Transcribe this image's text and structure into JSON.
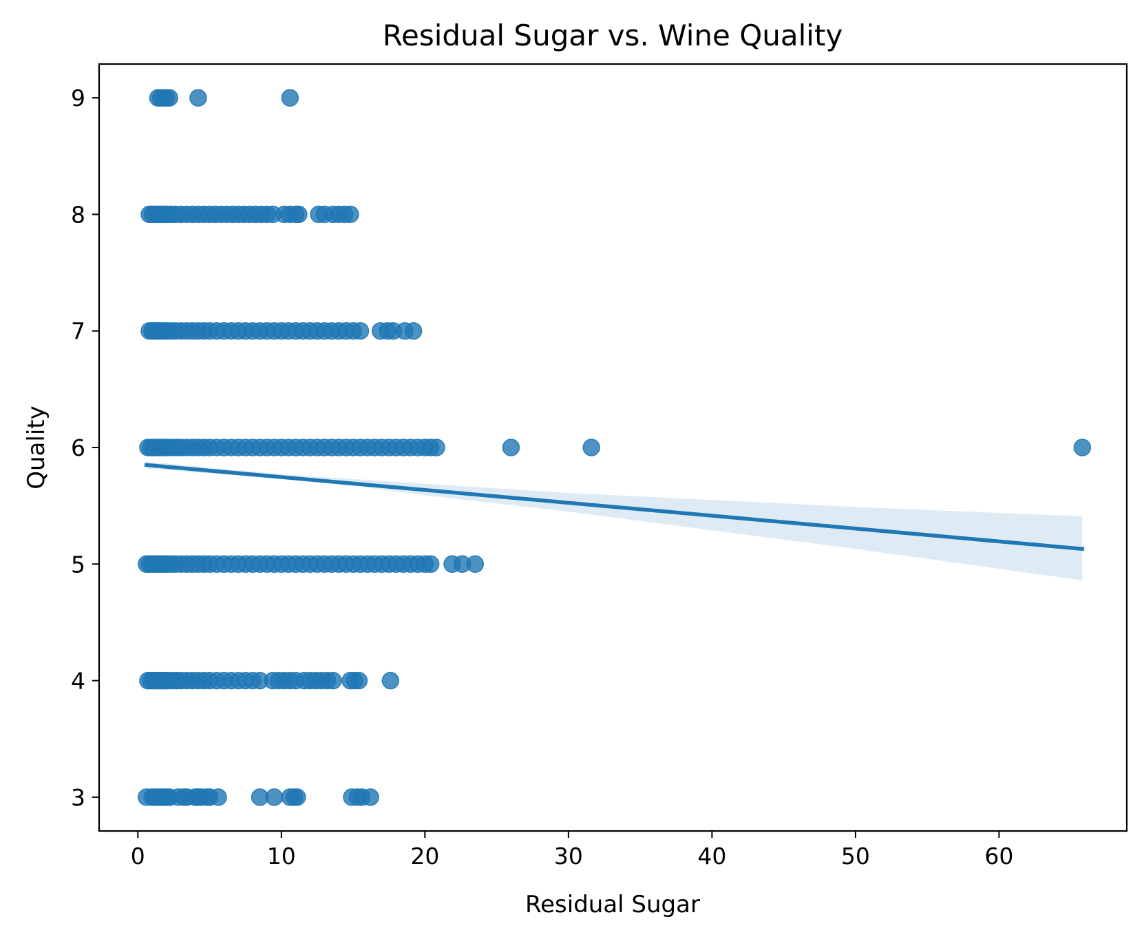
{
  "chart_data": {
    "type": "scatter",
    "title": "Residual Sugar vs. Wine Quality",
    "xlabel": "Residual Sugar",
    "ylabel": "Quality",
    "xlim": [
      -2.7,
      68.9
    ],
    "ylim": [
      2.71,
      9.29
    ],
    "xticks": [
      0,
      10,
      20,
      30,
      40,
      50,
      60
    ],
    "yticks": [
      3,
      4,
      5,
      6,
      7,
      8,
      9
    ],
    "grid": false,
    "point_color": "#1f77b4",
    "band_color": "#1f77b4",
    "series": [
      {
        "type": "scatter",
        "points": [
          [
            1.4,
            9
          ],
          [
            1.6,
            9
          ],
          [
            1.8,
            9
          ],
          [
            2.0,
            9
          ],
          [
            2.2,
            9
          ],
          [
            4.2,
            9
          ],
          [
            10.6,
            9
          ],
          [
            0.8,
            8
          ],
          [
            1.0,
            8
          ],
          [
            1.2,
            8
          ],
          [
            1.4,
            8
          ],
          [
            1.6,
            8
          ],
          [
            1.8,
            8
          ],
          [
            2.0,
            8
          ],
          [
            2.3,
            8
          ],
          [
            2.6,
            8
          ],
          [
            3.0,
            8
          ],
          [
            3.4,
            8
          ],
          [
            3.8,
            8
          ],
          [
            4.2,
            8
          ],
          [
            4.6,
            8
          ],
          [
            5.0,
            8
          ],
          [
            5.4,
            8
          ],
          [
            5.8,
            8
          ],
          [
            6.2,
            8
          ],
          [
            6.6,
            8
          ],
          [
            7.0,
            8
          ],
          [
            7.4,
            8
          ],
          [
            7.8,
            8
          ],
          [
            8.2,
            8
          ],
          [
            8.6,
            8
          ],
          [
            9.0,
            8
          ],
          [
            9.4,
            8
          ],
          [
            10.2,
            8
          ],
          [
            10.6,
            8
          ],
          [
            11.0,
            8
          ],
          [
            11.2,
            8
          ],
          [
            12.6,
            8
          ],
          [
            13.0,
            8
          ],
          [
            13.6,
            8
          ],
          [
            14.0,
            8
          ],
          [
            14.4,
            8
          ],
          [
            14.8,
            8
          ],
          [
            0.8,
            7
          ],
          [
            1.0,
            7
          ],
          [
            1.2,
            7
          ],
          [
            1.4,
            7
          ],
          [
            1.6,
            7
          ],
          [
            1.8,
            7
          ],
          [
            2.0,
            7
          ],
          [
            2.3,
            7
          ],
          [
            2.6,
            7
          ],
          [
            3.0,
            7
          ],
          [
            3.4,
            7
          ],
          [
            3.8,
            7
          ],
          [
            4.2,
            7
          ],
          [
            4.6,
            7
          ],
          [
            5.0,
            7
          ],
          [
            5.5,
            7
          ],
          [
            6.0,
            7
          ],
          [
            6.5,
            7
          ],
          [
            7.0,
            7
          ],
          [
            7.5,
            7
          ],
          [
            8.0,
            7
          ],
          [
            8.5,
            7
          ],
          [
            9.0,
            7
          ],
          [
            9.5,
            7
          ],
          [
            10.0,
            7
          ],
          [
            10.5,
            7
          ],
          [
            11.0,
            7
          ],
          [
            11.5,
            7
          ],
          [
            12.0,
            7
          ],
          [
            12.5,
            7
          ],
          [
            13.0,
            7
          ],
          [
            13.5,
            7
          ],
          [
            14.0,
            7
          ],
          [
            14.5,
            7
          ],
          [
            15.0,
            7
          ],
          [
            15.5,
            7
          ],
          [
            16.9,
            7
          ],
          [
            17.4,
            7
          ],
          [
            17.8,
            7
          ],
          [
            18.6,
            7
          ],
          [
            19.2,
            7
          ],
          [
            0.7,
            6
          ],
          [
            0.9,
            6
          ],
          [
            1.1,
            6
          ],
          [
            1.3,
            6
          ],
          [
            1.5,
            6
          ],
          [
            1.7,
            6
          ],
          [
            1.9,
            6
          ],
          [
            2.1,
            6
          ],
          [
            2.4,
            6
          ],
          [
            2.7,
            6
          ],
          [
            3.0,
            6
          ],
          [
            3.4,
            6
          ],
          [
            3.8,
            6
          ],
          [
            4.2,
            6
          ],
          [
            4.6,
            6
          ],
          [
            5.0,
            6
          ],
          [
            5.5,
            6
          ],
          [
            6.0,
            6
          ],
          [
            6.5,
            6
          ],
          [
            7.0,
            6
          ],
          [
            7.5,
            6
          ],
          [
            8.0,
            6
          ],
          [
            8.5,
            6
          ],
          [
            9.0,
            6
          ],
          [
            9.5,
            6
          ],
          [
            10.0,
            6
          ],
          [
            10.5,
            6
          ],
          [
            11.0,
            6
          ],
          [
            11.5,
            6
          ],
          [
            12.0,
            6
          ],
          [
            12.5,
            6
          ],
          [
            13.0,
            6
          ],
          [
            13.5,
            6
          ],
          [
            14.0,
            6
          ],
          [
            14.5,
            6
          ],
          [
            15.0,
            6
          ],
          [
            15.5,
            6
          ],
          [
            16.0,
            6
          ],
          [
            16.5,
            6
          ],
          [
            17.0,
            6
          ],
          [
            17.5,
            6
          ],
          [
            18.0,
            6
          ],
          [
            18.5,
            6
          ],
          [
            19.0,
            6
          ],
          [
            19.5,
            6
          ],
          [
            20.0,
            6
          ],
          [
            20.4,
            6
          ],
          [
            20.8,
            6
          ],
          [
            26.0,
            6
          ],
          [
            31.6,
            6
          ],
          [
            65.8,
            6
          ],
          [
            0.6,
            5
          ],
          [
            0.8,
            5
          ],
          [
            1.0,
            5
          ],
          [
            1.2,
            5
          ],
          [
            1.4,
            5
          ],
          [
            1.6,
            5
          ],
          [
            1.8,
            5
          ],
          [
            2.0,
            5
          ],
          [
            2.3,
            5
          ],
          [
            2.6,
            5
          ],
          [
            3.0,
            5
          ],
          [
            3.4,
            5
          ],
          [
            3.8,
            5
          ],
          [
            4.2,
            5
          ],
          [
            4.6,
            5
          ],
          [
            5.0,
            5
          ],
          [
            5.5,
            5
          ],
          [
            6.0,
            5
          ],
          [
            6.5,
            5
          ],
          [
            7.0,
            5
          ],
          [
            7.5,
            5
          ],
          [
            8.0,
            5
          ],
          [
            8.5,
            5
          ],
          [
            9.0,
            5
          ],
          [
            9.5,
            5
          ],
          [
            10.0,
            5
          ],
          [
            10.5,
            5
          ],
          [
            11.0,
            5
          ],
          [
            11.5,
            5
          ],
          [
            12.0,
            5
          ],
          [
            12.5,
            5
          ],
          [
            13.0,
            5
          ],
          [
            13.5,
            5
          ],
          [
            14.0,
            5
          ],
          [
            14.5,
            5
          ],
          [
            15.0,
            5
          ],
          [
            15.5,
            5
          ],
          [
            16.0,
            5
          ],
          [
            16.5,
            5
          ],
          [
            17.0,
            5
          ],
          [
            17.5,
            5
          ],
          [
            18.0,
            5
          ],
          [
            18.5,
            5
          ],
          [
            19.0,
            5
          ],
          [
            19.5,
            5
          ],
          [
            20.0,
            5
          ],
          [
            20.4,
            5
          ],
          [
            21.9,
            5
          ],
          [
            22.6,
            5
          ],
          [
            23.5,
            5
          ],
          [
            0.7,
            4
          ],
          [
            0.9,
            4
          ],
          [
            1.1,
            4
          ],
          [
            1.3,
            4
          ],
          [
            1.5,
            4
          ],
          [
            1.7,
            4
          ],
          [
            1.9,
            4
          ],
          [
            2.1,
            4
          ],
          [
            2.4,
            4
          ],
          [
            2.7,
            4
          ],
          [
            3.0,
            4
          ],
          [
            3.4,
            4
          ],
          [
            3.8,
            4
          ],
          [
            4.2,
            4
          ],
          [
            4.6,
            4
          ],
          [
            5.0,
            4
          ],
          [
            5.5,
            4
          ],
          [
            6.0,
            4
          ],
          [
            6.5,
            4
          ],
          [
            7.0,
            4
          ],
          [
            7.5,
            4
          ],
          [
            8.0,
            4
          ],
          [
            8.5,
            4
          ],
          [
            9.4,
            4
          ],
          [
            9.8,
            4
          ],
          [
            10.2,
            4
          ],
          [
            10.6,
            4
          ],
          [
            11.0,
            4
          ],
          [
            11.6,
            4
          ],
          [
            12.0,
            4
          ],
          [
            12.4,
            4
          ],
          [
            12.8,
            4
          ],
          [
            13.2,
            4
          ],
          [
            13.6,
            4
          ],
          [
            14.8,
            4
          ],
          [
            15.1,
            4
          ],
          [
            15.4,
            4
          ],
          [
            17.6,
            4
          ],
          [
            0.6,
            3
          ],
          [
            1.0,
            3
          ],
          [
            1.2,
            3
          ],
          [
            1.4,
            3
          ],
          [
            1.6,
            3
          ],
          [
            1.8,
            3
          ],
          [
            2.0,
            3
          ],
          [
            2.2,
            3
          ],
          [
            2.8,
            3
          ],
          [
            3.2,
            3
          ],
          [
            3.4,
            3
          ],
          [
            4.0,
            3
          ],
          [
            4.2,
            3
          ],
          [
            4.4,
            3
          ],
          [
            4.8,
            3
          ],
          [
            5.0,
            3
          ],
          [
            5.6,
            3
          ],
          [
            8.5,
            3
          ],
          [
            9.5,
            3
          ],
          [
            10.6,
            3
          ],
          [
            10.9,
            3
          ],
          [
            11.1,
            3
          ],
          [
            14.9,
            3
          ],
          [
            15.3,
            3
          ],
          [
            15.6,
            3
          ],
          [
            16.2,
            3
          ]
        ]
      },
      {
        "type": "regression_line",
        "points": [
          [
            0.6,
            5.85
          ],
          [
            65.8,
            5.13
          ]
        ],
        "confidence_band": {
          "x": [
            0.6,
            10,
            15,
            20,
            30,
            40,
            50,
            65.8
          ],
          "lower": [
            5.82,
            5.73,
            5.67,
            5.59,
            5.45,
            5.29,
            5.13,
            4.86
          ],
          "upper": [
            5.88,
            5.77,
            5.73,
            5.69,
            5.61,
            5.55,
            5.49,
            5.41
          ]
        }
      }
    ]
  }
}
